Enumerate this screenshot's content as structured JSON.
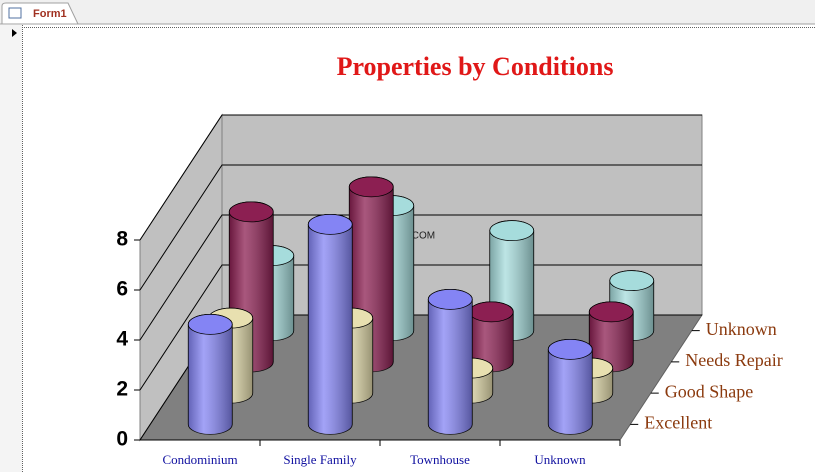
{
  "window": {
    "tab": "Form1"
  },
  "chart_data": {
    "type": "bar3d",
    "title": "Properties by Conditions",
    "annotation": "SQLDAT.COM",
    "categories": [
      "Condominium",
      "Single Family",
      "Townhouse",
      "Unknown"
    ],
    "series": [
      {
        "name": "Excellent",
        "color": "#8484f4",
        "values": [
          4,
          8,
          5,
          3
        ]
      },
      {
        "name": "Good Shape",
        "color": "#e8e0b0",
        "values": [
          3,
          3,
          1,
          1
        ]
      },
      {
        "name": "Needs Repair",
        "color": "#8c1f52",
        "values": [
          6,
          7,
          2,
          2
        ]
      },
      {
        "name": "Unknown",
        "color": "#a6dcdc",
        "values": [
          3,
          5,
          4,
          2
        ]
      }
    ],
    "ylim": [
      0,
      8
    ],
    "yticks": [
      0,
      2,
      4,
      6,
      8
    ],
    "grid": true
  }
}
